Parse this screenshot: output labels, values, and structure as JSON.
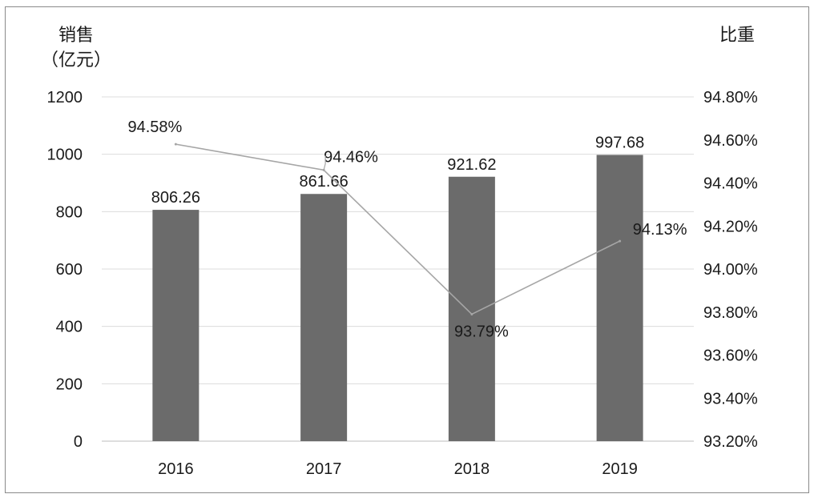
{
  "chart_data": {
    "type": "bar",
    "categories": [
      "2016",
      "2017",
      "2018",
      "2019"
    ],
    "series": [
      {
        "values": [
          806.26,
          861.66,
          921.62,
          997.68
        ],
        "axis": "left",
        "mark": "bar",
        "color": "#6b6b6b"
      },
      {
        "values": [
          94.58,
          94.46,
          93.79,
          94.13
        ],
        "axis": "right",
        "mark": "line",
        "unit": "%",
        "color": "#a6a6a6"
      }
    ],
    "bar_labels": [
      "806.26",
      "861.66",
      "921.62",
      "997.68"
    ],
    "line_labels": [
      "94.58%",
      "94.46%",
      "93.79%",
      "94.13%"
    ],
    "ylabel": "销售\n（亿元）",
    "y2label": "比重",
    "ylim": [
      0,
      1200
    ],
    "y2lim": [
      93.2,
      94.8
    ],
    "yticks": [
      "0",
      "200",
      "400",
      "600",
      "800",
      "1000",
      "1200"
    ],
    "y2ticks": [
      "93.20%",
      "93.40%",
      "93.60%",
      "93.80%",
      "94.00%",
      "94.20%",
      "94.40%",
      "94.60%",
      "94.80%"
    ],
    "grid": true,
    "legend": "none"
  }
}
